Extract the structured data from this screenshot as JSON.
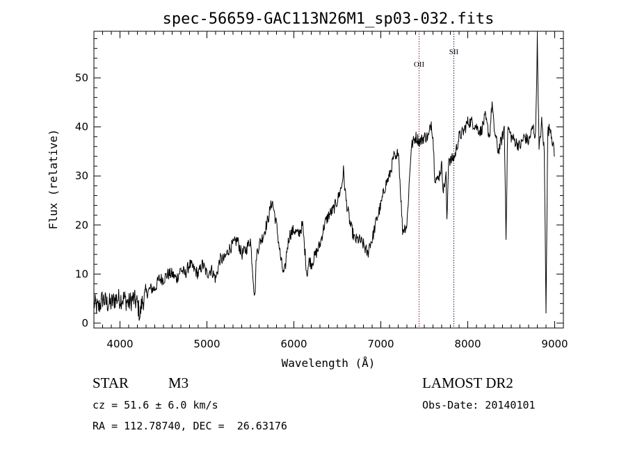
{
  "chart_data": {
    "type": "line",
    "title": "spec-56659-GAC113N26M1_sp03-032.fits",
    "xlabel": "Wavelength (Å)",
    "ylabel": "Flux (relative)",
    "xlim": [
      3700,
      9100
    ],
    "ylim": [
      -1,
      59.5
    ],
    "x_ticks": [
      4000,
      5000,
      6000,
      7000,
      8000,
      9000
    ],
    "y_ticks": [
      0,
      10,
      20,
      30,
      40,
      50
    ],
    "grid": false,
    "series": [
      {
        "x": [
          3700,
          3750,
          3800,
          3850,
          3900,
          3950,
          4000,
          4050,
          4100,
          4150,
          4200,
          4230,
          4250,
          4300,
          4350,
          4400,
          4450,
          4500,
          4550,
          4600,
          4650,
          4700,
          4750,
          4800,
          4850,
          4900,
          4950,
          5000,
          5050,
          5100,
          5150,
          5200,
          5250,
          5300,
          5350,
          5400,
          5450,
          5500,
          5550,
          5570,
          5600,
          5650,
          5700,
          5750,
          5800,
          5850,
          5880,
          5900,
          5920,
          5950,
          6000,
          6050,
          6100,
          6150,
          6180,
          6200,
          6250,
          6300,
          6350,
          6400,
          6450,
          6500,
          6550,
          6570,
          6600,
          6650,
          6700,
          6750,
          6800,
          6850,
          6870,
          6900,
          6950,
          7000,
          7050,
          7100,
          7150,
          7180,
          7200,
          7250,
          7300,
          7350,
          7400,
          7450,
          7500,
          7550,
          7580,
          7600,
          7620,
          7650,
          7700,
          7720,
          7750,
          7760,
          7780,
          7800,
          7850,
          7900,
          7950,
          8000,
          8050,
          8100,
          8150,
          8200,
          8250,
          8280,
          8300,
          8320,
          8350,
          8400,
          8420,
          8440,
          8460,
          8500,
          8550,
          8600,
          8650,
          8700,
          8750,
          8780,
          8800,
          8820,
          8850,
          8880,
          8900,
          8920,
          8950,
          9000
        ],
        "y": [
          4,
          3,
          5,
          4,
          4,
          5,
          5,
          5,
          4,
          5,
          4,
          1.5,
          4,
          6,
          7,
          7,
          9,
          9,
          10,
          10,
          9,
          11,
          10,
          12,
          11,
          10,
          12,
          10,
          11,
          9,
          13,
          13,
          15,
          16,
          17,
          14,
          15,
          17,
          5,
          14,
          16,
          18,
          21,
          25,
          20,
          13,
          10,
          11,
          15,
          18,
          19,
          18,
          20,
          10,
          13,
          12,
          14,
          16,
          20,
          22,
          23,
          25,
          28,
          31,
          25,
          20,
          17,
          17,
          16,
          14,
          16,
          17,
          21,
          24,
          28,
          30,
          34,
          33,
          36,
          19,
          20,
          36,
          38,
          37,
          38,
          38,
          41,
          38,
          30,
          29,
          32,
          27,
          30,
          20,
          34,
          33,
          34,
          38,
          39,
          41,
          41,
          40,
          39,
          42,
          38,
          45,
          40,
          38,
          35,
          38,
          40,
          18,
          40,
          38,
          37,
          36,
          38,
          37,
          40,
          38,
          58,
          35,
          41,
          35,
          3,
          39,
          40,
          34
        ]
      }
    ],
    "annotations": [
      {
        "label": "OII",
        "x": 7440
      },
      {
        "label": "SII",
        "x": 7840
      }
    ]
  },
  "info": {
    "object_class": "STAR",
    "subclass": "M3",
    "survey": "LAMOST DR2",
    "cz": "cz = 51.6 ± 6.0 km/s",
    "obs_date": "Obs-Date: 20140101",
    "coords": "RA = 112.78740, DEC =  26.63176"
  }
}
